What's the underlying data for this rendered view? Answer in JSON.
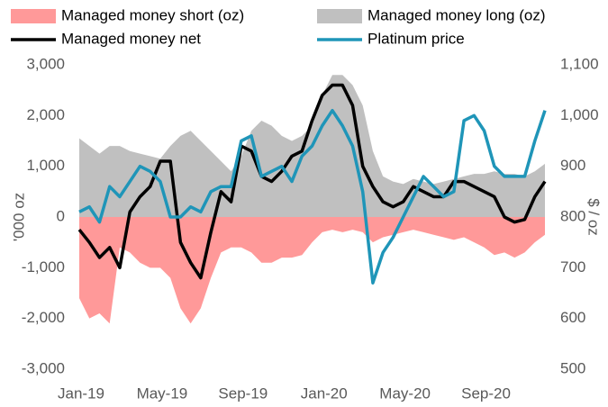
{
  "chart_data": {
    "type": "line",
    "categories": [
      "Jan-19",
      null,
      null,
      null,
      null,
      null,
      null,
      null,
      "May-19",
      null,
      null,
      null,
      null,
      null,
      null,
      null,
      "Sep-19",
      null,
      null,
      null,
      null,
      null,
      null,
      null,
      "Jan-20",
      null,
      null,
      null,
      null,
      null,
      null,
      null,
      "May-20",
      null,
      null,
      null,
      null,
      null,
      null,
      null,
      "Sep-20",
      null,
      null,
      null,
      null,
      null,
      null
    ],
    "y_label": "'000 oz",
    "y2_label": "$ / oz",
    "ylim": [
      -3000,
      3000
    ],
    "yticks": [
      {
        "value": -3000,
        "label": "-3,000"
      },
      {
        "value": -2000,
        "label": "-2,000"
      },
      {
        "value": -1000,
        "label": "-1,000"
      },
      0,
      {
        "value": 1000,
        "label": "1,000"
      },
      {
        "value": 2000,
        "label": "2,000"
      },
      {
        "value": 3000,
        "label": "3,000"
      }
    ],
    "y2lim": [
      500,
      1100
    ],
    "y2ticks": [
      500,
      600,
      700,
      800,
      900,
      {
        "value": 1000,
        "label": "1,000"
      },
      {
        "value": 1100,
        "label": "1,100"
      }
    ],
    "series": [
      {
        "name": "Managed money short (oz)",
        "kind": "area",
        "color": "#ff9999",
        "values": [
          -1600,
          -2000,
          -1900,
          -2100,
          -600,
          -700,
          -900,
          -1000,
          -1000,
          -1200,
          -1800,
          -2100,
          -1800,
          -1200,
          -700,
          -600,
          -600,
          -700,
          -900,
          -900,
          -800,
          -800,
          -750,
          -500,
          -300,
          -250,
          -300,
          -250,
          -300,
          -500,
          -400,
          -350,
          -300,
          -250,
          -300,
          -350,
          -400,
          -450,
          -400,
          -500,
          -600,
          -750,
          -700,
          -800,
          -700,
          -500,
          -350
        ]
      },
      {
        "name": "Managed money long (oz)",
        "kind": "area",
        "color": "#c0c0c0",
        "values": [
          1550,
          1400,
          1250,
          1400,
          1400,
          1300,
          1250,
          1200,
          1150,
          1400,
          1600,
          1700,
          1500,
          1300,
          1100,
          900,
          1200,
          1700,
          1900,
          1800,
          1600,
          1500,
          1600,
          1800,
          2400,
          2800,
          2800,
          2600,
          2200,
          1300,
          800,
          700,
          650,
          750,
          700,
          650,
          700,
          750,
          800,
          850,
          850,
          900,
          850,
          850,
          800,
          900,
          1050
        ]
      },
      {
        "name": "Managed money net",
        "kind": "line",
        "color": "#000000",
        "values": [
          -250,
          -500,
          -800,
          -600,
          -1000,
          100,
          400,
          600,
          1100,
          1100,
          -500,
          -900,
          -1200,
          -300,
          500,
          300,
          1400,
          1300,
          800,
          700,
          900,
          1200,
          1300,
          1900,
          2400,
          2600,
          2600,
          2200,
          1000,
          600,
          300,
          200,
          300,
          600,
          500,
          400,
          400,
          700,
          700,
          600,
          500,
          400,
          0,
          -100,
          -50,
          400,
          700
        ]
      },
      {
        "name": "Platinum price",
        "kind": "line",
        "axis": "y2",
        "color": "#1f95b8",
        "values": [
          810,
          820,
          790,
          860,
          840,
          870,
          900,
          890,
          870,
          800,
          800,
          820,
          810,
          850,
          860,
          860,
          950,
          960,
          880,
          890,
          900,
          870,
          920,
          940,
          980,
          1010,
          980,
          940,
          850,
          670,
          730,
          760,
          800,
          840,
          880,
          860,
          840,
          850,
          990,
          1000,
          970,
          900,
          880,
          880,
          880,
          950,
          1010
        ]
      }
    ]
  }
}
